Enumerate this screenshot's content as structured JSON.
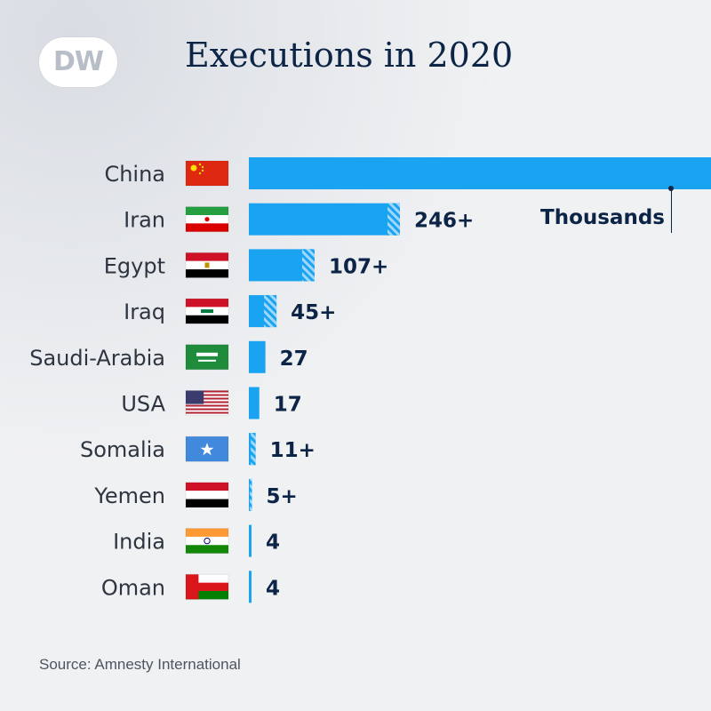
{
  "logo": {
    "text": "DW"
  },
  "title": "Executions in 2020",
  "source": "Source: Amnesty International",
  "unit_annotation": "Thousands",
  "colors": {
    "bar": "#1aa3f0",
    "hatch": "#9fd8fa",
    "text": "#0c2446",
    "label": "#2d3540"
  },
  "chart_data": {
    "type": "bar",
    "orientation": "horizontal",
    "title": "Executions in 2020",
    "xlabel": "",
    "ylabel": "",
    "categories": [
      "China",
      "Iran",
      "Egypt",
      "Iraq",
      "Saudi-Arabia",
      "USA",
      "Somalia",
      "Yemen",
      "India",
      "Oman"
    ],
    "values": [
      null,
      246,
      107,
      45,
      27,
      17,
      11,
      5,
      4,
      4
    ],
    "value_labels": [
      "Thousands",
      "246+",
      "107+",
      "45+",
      "27",
      "17",
      "11+",
      "5+",
      "4",
      "4"
    ],
    "minimum_estimate": [
      false,
      true,
      true,
      true,
      false,
      false,
      true,
      true,
      false,
      false
    ],
    "flags": [
      "china-flag",
      "iran-flag",
      "egypt-flag",
      "iraq-flag",
      "saudi-arabia-flag",
      "usa-flag",
      "somalia-flag",
      "yemen-flag",
      "india-flag",
      "oman-flag"
    ],
    "xlim": [
      0,
      245
    ],
    "grid": false,
    "legend": "none"
  }
}
